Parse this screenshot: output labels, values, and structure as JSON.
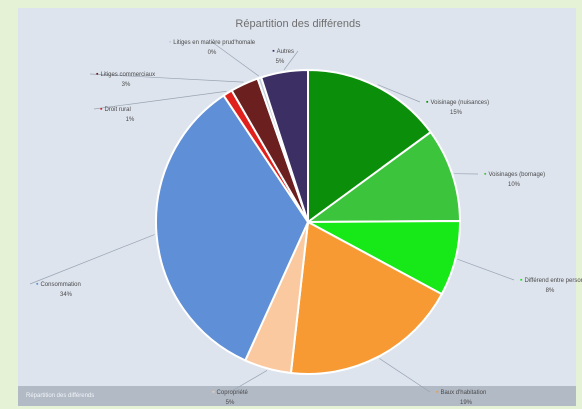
{
  "chart_data": {
    "type": "pie",
    "title": "Répartition des différends",
    "slices": [
      {
        "label": "Voisinage (nuisances)",
        "pct_label": "15%",
        "value": 15,
        "color": "#0b8f0b"
      },
      {
        "label": "Voisinages (bornage)",
        "pct_label": "10%",
        "value": 10,
        "color": "#3cc43c"
      },
      {
        "label": "Différend entre personnes",
        "pct_label": "8%",
        "value": 8,
        "color": "#17e817"
      },
      {
        "label": "Baux d'habitation",
        "pct_label": "19%",
        "value": 19,
        "color": "#f79a33"
      },
      {
        "label": "Copropriété",
        "pct_label": "5%",
        "value": 5,
        "color": "#fac9a0"
      },
      {
        "label": "Consommation",
        "pct_label": "34%",
        "value": 34,
        "color": "#5f8fd6"
      },
      {
        "label": "Droit rural",
        "pct_label": "1%",
        "value": 1,
        "color": "#e0201c"
      },
      {
        "label": "Litiges commerciaux",
        "pct_label": "3%",
        "value": 3,
        "color": "#6b1f1f"
      },
      {
        "label": "Litiges en matière prud'homale",
        "pct_label": "0%",
        "value": 0.4,
        "color": "#c4cfdc"
      },
      {
        "label": "Autres",
        "pct_label": "5%",
        "value": 5,
        "color": "#3c2f63"
      }
    ]
  },
  "footer": {
    "text": "Répartition des différends"
  }
}
